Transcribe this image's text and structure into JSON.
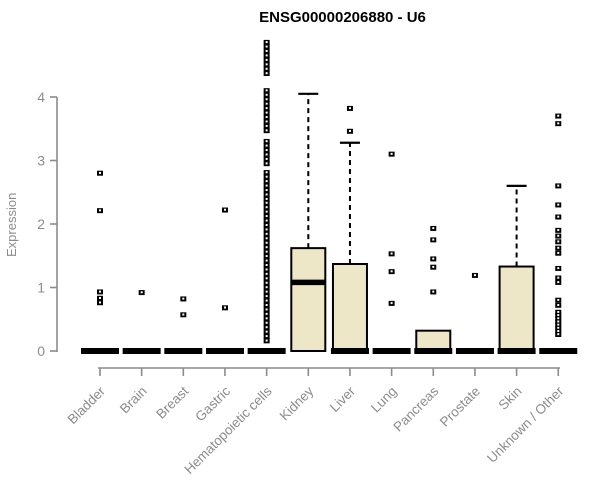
{
  "chart_data": {
    "type": "boxplot",
    "title": "ENSG00000206880 - U6",
    "ylabel": "Expression",
    "xlabel": "",
    "yticks": [
      0,
      1,
      2,
      3,
      4
    ],
    "ylim": [
      0,
      4.95
    ],
    "grid": false,
    "legend": "none",
    "colors": {
      "axis": "#8c8c8c",
      "tick_label": "#8c8c8c",
      "title": "#000000",
      "box_fill": "#ede6c7",
      "box_stroke": "#000000",
      "marks": "#000000"
    },
    "categories": [
      {
        "label": "Bladder",
        "box": null,
        "zero_bar": true,
        "outliers": [
          2.8,
          2.21,
          0.93,
          0.83,
          0.76
        ]
      },
      {
        "label": "Brain",
        "box": null,
        "zero_bar": true,
        "outliers": [
          0.92
        ]
      },
      {
        "label": "Breast",
        "box": null,
        "zero_bar": true,
        "outliers": [
          0.82,
          0.57
        ]
      },
      {
        "label": "Gastric",
        "box": null,
        "zero_bar": true,
        "outliers": [
          2.22,
          0.68
        ]
      },
      {
        "label": "Hematopoietic cells",
        "box": null,
        "zero_bar": true,
        "outliers": [
          4.86,
          4.79,
          4.72,
          4.65,
          4.58,
          4.51,
          4.44,
          4.37,
          4.1,
          4.03,
          3.96,
          3.89,
          3.82,
          3.75,
          3.68,
          3.61,
          3.54,
          3.47,
          3.3,
          3.23,
          3.16,
          3.09,
          3.02,
          2.95,
          2.81,
          2.74,
          2.67,
          2.6,
          2.53,
          2.46,
          2.39,
          2.33,
          2.26,
          2.19,
          2.12,
          2.05,
          1.98,
          1.91,
          1.84,
          1.77,
          1.7,
          1.63,
          1.56,
          1.49,
          1.42,
          1.35,
          1.28,
          1.21,
          1.14,
          1.07,
          1.0,
          0.93,
          0.86,
          0.79,
          0.72,
          0.65,
          0.58,
          0.51,
          0.44,
          0.37,
          0.3,
          0.23,
          0.16
        ]
      },
      {
        "label": "Kidney",
        "box": {
          "q1": 0,
          "median": 1.08,
          "q3": 1.62,
          "whisker_high": 4.05
        },
        "zero_bar": false,
        "outliers": []
      },
      {
        "label": "Liver",
        "box": {
          "q1": 0,
          "median": 0,
          "q3": 1.37,
          "whisker_high": 3.28
        },
        "zero_bar": true,
        "outliers": [
          3.82,
          3.46
        ]
      },
      {
        "label": "Lung",
        "box": null,
        "zero_bar": true,
        "outliers": [
          3.1,
          1.53,
          1.25,
          0.75
        ]
      },
      {
        "label": "Pancreas",
        "box": {
          "q1": 0,
          "median": 0,
          "q3": 0.32,
          "whisker_high": null
        },
        "zero_bar": true,
        "outliers": [
          1.93,
          1.75,
          1.45,
          1.32,
          0.93
        ]
      },
      {
        "label": "Prostate",
        "box": null,
        "zero_bar": true,
        "outliers": [
          1.19
        ]
      },
      {
        "label": "Skin",
        "box": {
          "q1": 0,
          "median": 0,
          "q3": 1.33,
          "whisker_high": 2.6
        },
        "zero_bar": true,
        "outliers": []
      },
      {
        "label": "Unknown / Other",
        "box": null,
        "zero_bar": true,
        "outliers": [
          3.7,
          3.58,
          2.6,
          2.3,
          2.11,
          1.9,
          1.81,
          1.72,
          1.62,
          1.54,
          1.3,
          1.15,
          1.08,
          0.8,
          0.72,
          0.61,
          0.56,
          0.51,
          0.46,
          0.41,
          0.36,
          0.31,
          0.26
        ]
      }
    ]
  }
}
